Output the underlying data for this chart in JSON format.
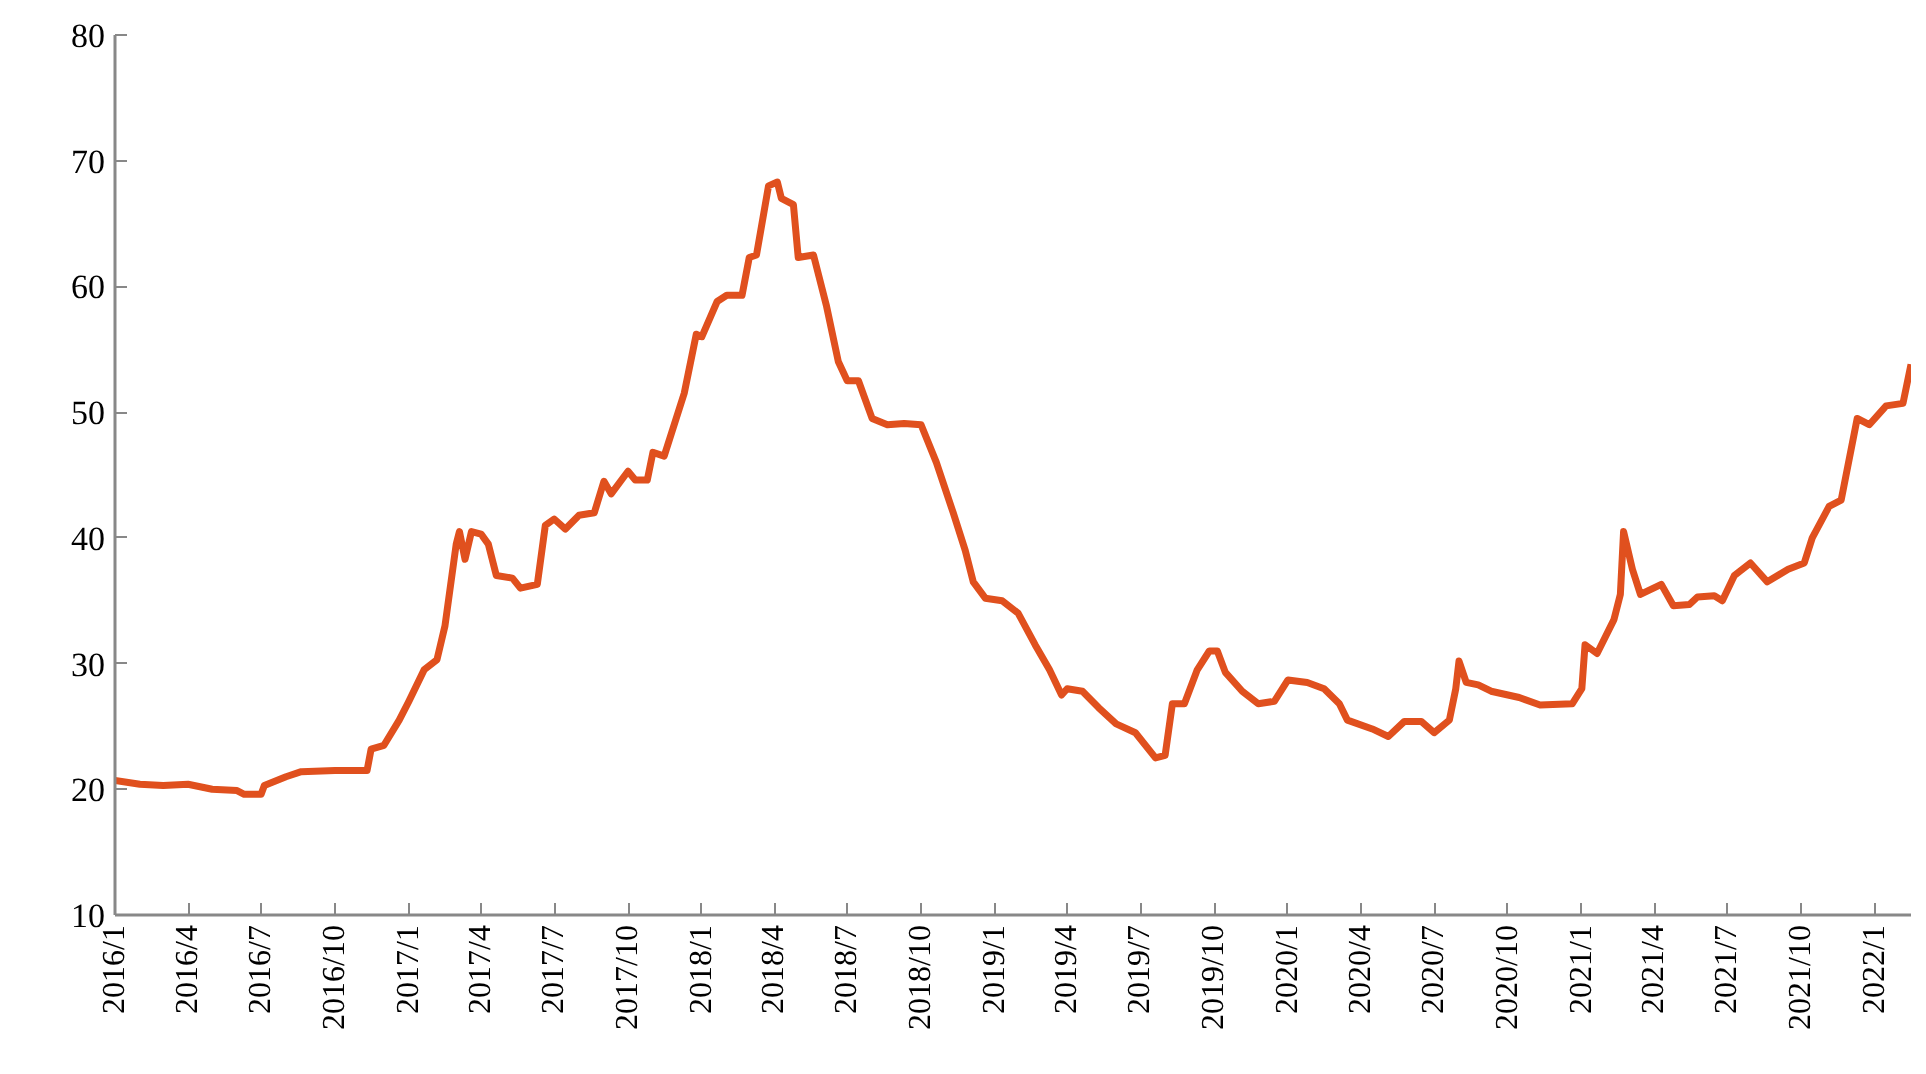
{
  "chart_data": {
    "type": "line",
    "grid": false,
    "xlim": [
      "2016-01-01",
      "2022-02-15"
    ],
    "xticks": [
      {
        "value": "2016-01-01",
        "label": "2016/1"
      },
      {
        "value": "2016-04-01",
        "label": "2016/4"
      },
      {
        "value": "2016-07-01",
        "label": "2016/7"
      },
      {
        "value": "2016-10-01",
        "label": "2016/10"
      },
      {
        "value": "2017-01-01",
        "label": "2017/1"
      },
      {
        "value": "2017-04-01",
        "label": "2017/4"
      },
      {
        "value": "2017-07-01",
        "label": "2017/7"
      },
      {
        "value": "2017-10-01",
        "label": "2017/10"
      },
      {
        "value": "2018-01-01",
        "label": "2018/1"
      },
      {
        "value": "2018-04-01",
        "label": "2018/4"
      },
      {
        "value": "2018-07-01",
        "label": "2018/7"
      },
      {
        "value": "2018-10-01",
        "label": "2018/10"
      },
      {
        "value": "2019-01-01",
        "label": "2019/1"
      },
      {
        "value": "2019-04-01",
        "label": "2019/4"
      },
      {
        "value": "2019-07-01",
        "label": "2019/7"
      },
      {
        "value": "2019-10-01",
        "label": "2019/10"
      },
      {
        "value": "2020-01-01",
        "label": "2020/1"
      },
      {
        "value": "2020-04-01",
        "label": "2020/4"
      },
      {
        "value": "2020-07-01",
        "label": "2020/7"
      },
      {
        "value": "2020-10-01",
        "label": "2020/10"
      },
      {
        "value": "2021-01-01",
        "label": "2021/1"
      },
      {
        "value": "2021-04-01",
        "label": "2021/4"
      },
      {
        "value": "2021-07-01",
        "label": "2021/7"
      },
      {
        "value": "2021-10-01",
        "label": "2021/10"
      },
      {
        "value": "2022-01-01",
        "label": "2022/1"
      }
    ],
    "ylim": [
      10,
      80
    ],
    "yticks": [
      10,
      20,
      30,
      40,
      50,
      60,
      70,
      80
    ],
    "marker": "none",
    "line_style": "solid",
    "x": [
      "2016-01-01",
      "2016-02-01",
      "2016-03-01",
      "2016-04-01",
      "2016-05-01",
      "2016-06-01",
      "2016-06-10",
      "2016-07-01",
      "2016-07-05",
      "2016-08-01",
      "2016-08-20",
      "2016-10-01",
      "2016-11-10",
      "2016-11-15",
      "2016-12-01",
      "2016-12-20",
      "2017-01-01",
      "2017-01-20",
      "2017-02-05",
      "2017-02-15",
      "2017-03-01",
      "2017-03-05",
      "2017-03-12",
      "2017-03-20",
      "2017-04-01",
      "2017-04-10",
      "2017-04-20",
      "2017-05-10",
      "2017-05-20",
      "2017-06-10",
      "2017-06-20",
      "2017-07-01",
      "2017-07-15",
      "2017-08-01",
      "2017-08-20",
      "2017-09-01",
      "2017-09-10",
      "2017-10-01",
      "2017-10-10",
      "2017-10-25",
      "2017-11-01",
      "2017-11-15",
      "2017-12-10",
      "2017-12-25",
      "2018-01-01",
      "2018-01-20",
      "2018-02-01",
      "2018-02-20",
      "2018-03-01",
      "2018-03-10",
      "2018-03-25",
      "2018-04-05",
      "2018-04-10",
      "2018-04-25",
      "2018-05-01",
      "2018-05-20",
      "2018-06-05",
      "2018-06-20",
      "2018-07-01",
      "2018-07-15",
      "2018-08-01",
      "2018-08-20",
      "2018-09-10",
      "2018-10-01",
      "2018-10-20",
      "2018-11-10",
      "2018-11-25",
      "2018-12-05",
      "2018-12-20",
      "2019-01-10",
      "2019-01-30",
      "2019-02-20",
      "2019-03-10",
      "2019-03-25",
      "2019-04-01",
      "2019-04-20",
      "2019-05-10",
      "2019-06-01",
      "2019-06-25",
      "2019-07-20",
      "2019-08-01",
      "2019-08-10",
      "2019-08-25",
      "2019-09-10",
      "2019-09-25",
      "2019-10-05",
      "2019-10-15",
      "2019-11-05",
      "2019-11-25",
      "2019-12-15",
      "2020-01-01",
      "2020-01-25",
      "2020-02-15",
      "2020-03-05",
      "2020-03-15",
      "2020-04-15",
      "2020-05-05",
      "2020-05-25",
      "2020-06-15",
      "2020-07-01",
      "2020-07-20",
      "2020-07-28",
      "2020-08-01",
      "2020-08-10",
      "2020-08-25",
      "2020-09-10",
      "2020-10-15",
      "2020-11-10",
      "2020-12-20",
      "2021-01-01",
      "2021-01-05",
      "2021-01-20",
      "2021-02-10",
      "2021-02-18",
      "2021-02-22",
      "2021-03-05",
      "2021-03-15",
      "2021-04-10",
      "2021-04-25",
      "2021-05-15",
      "2021-05-25",
      "2021-06-15",
      "2021-06-25",
      "2021-07-10",
      "2021-07-30",
      "2021-08-20",
      "2021-09-15",
      "2021-10-05",
      "2021-10-15",
      "2021-11-05",
      "2021-11-20",
      "2021-12-10",
      "2021-12-25",
      "2022-01-15",
      "2022-02-05",
      "2022-02-15"
    ],
    "series": [
      {
        "color": "#e0501e",
        "values": [
          20.7,
          20.4,
          20.3,
          20.4,
          20.0,
          19.9,
          19.6,
          19.6,
          20.3,
          21.0,
          21.4,
          21.5,
          21.5,
          23.2,
          23.5,
          25.5,
          27.0,
          29.5,
          30.3,
          33,
          39.5,
          40.5,
          38.3,
          40.5,
          40.3,
          39.5,
          37.0,
          36.8,
          36.0,
          36.3,
          41.0,
          41.5,
          40.7,
          41.8,
          42.0,
          44.5,
          43.5,
          45.3,
          44.6,
          44.6,
          46.8,
          46.5,
          51.5,
          56.2,
          56.0,
          58.8,
          59.3,
          59.3,
          62.3,
          62.5,
          68.0,
          68.3,
          67,
          66.5,
          62.3,
          62.5,
          58.5,
          54,
          52.5,
          52.5,
          49.5,
          49.0,
          49.1,
          49,
          46,
          42,
          39,
          36.5,
          35.2,
          35,
          34,
          31.5,
          29.5,
          27.5,
          28.0,
          27.8,
          26.5,
          25.2,
          24.5,
          22.5,
          22.7,
          26.8,
          26.8,
          29.5,
          31,
          31.0,
          29.3,
          27.8,
          26.8,
          27.0,
          28.7,
          28.5,
          28.0,
          26.8,
          25.5,
          24.8,
          24.2,
          25.4,
          25.4,
          24.5,
          25.5,
          28.0,
          30.2,
          28.5,
          28.3,
          27.8,
          27.3,
          26.7,
          26.8,
          28.0,
          31.5,
          30.8,
          33.5,
          35.5,
          40.5,
          37.5,
          35.5,
          36.3,
          34.6,
          34.7,
          35.3,
          35.4,
          35.0,
          37.0,
          38.0,
          36.5,
          37.5,
          38.0,
          40.0,
          42.5,
          43.0,
          49.5,
          49.0,
          50.5,
          50.7,
          53.8
        ]
      }
    ]
  }
}
